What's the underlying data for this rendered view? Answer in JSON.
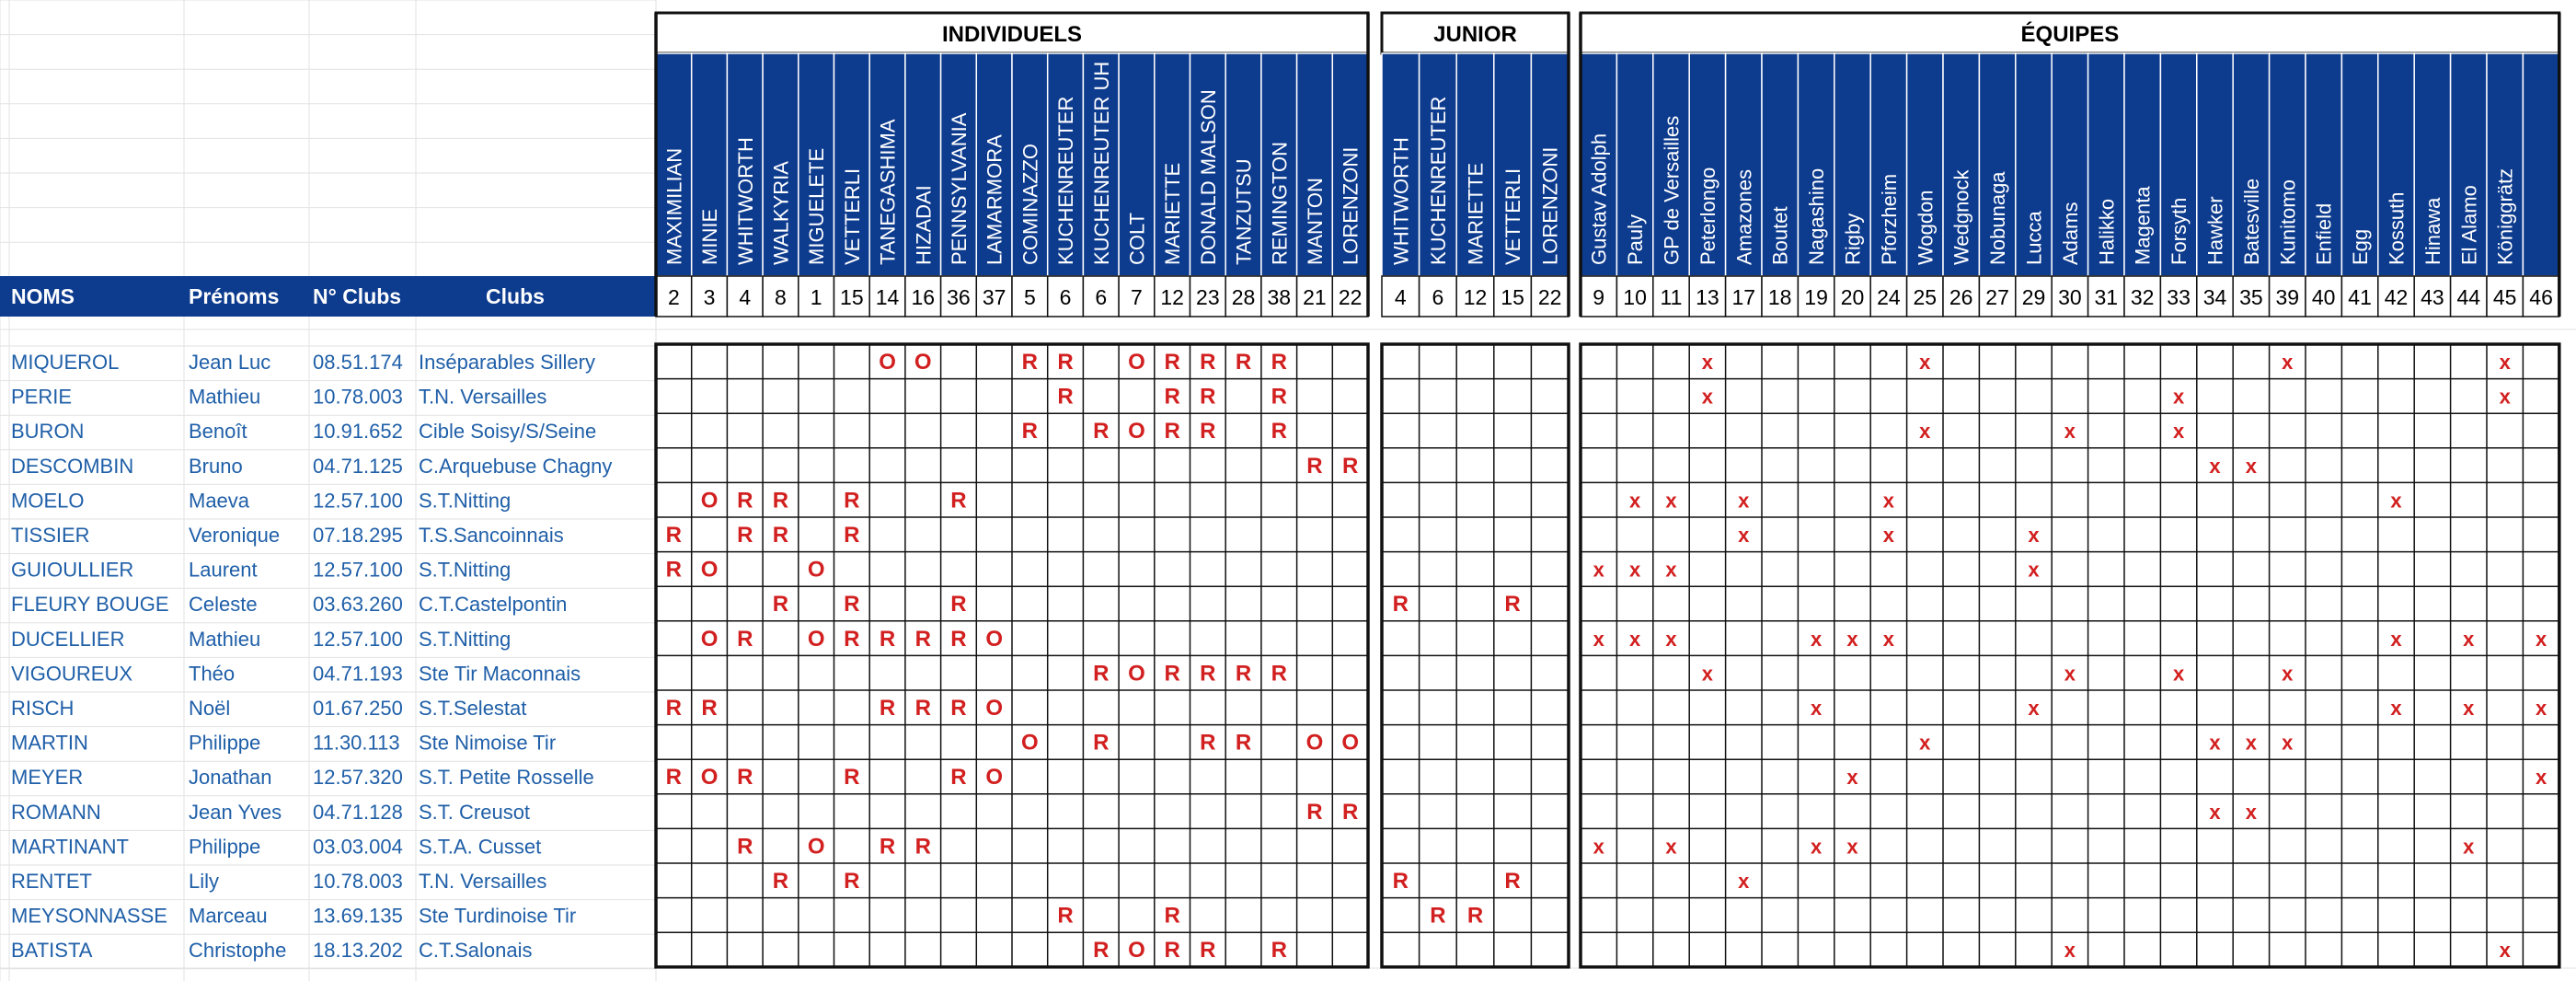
{
  "groups": {
    "individuels": "INDIVIDUELS",
    "junior": "JUNIOR",
    "equipes": "ÉQUIPES"
  },
  "columns": {
    "nom": "NOMS",
    "prenom": "Prénoms",
    "club_no": "N° Clubs",
    "club": "Clubs"
  },
  "individuels": [
    {
      "name": "MAXIMILIAN",
      "num": "2"
    },
    {
      "name": "MINIE",
      "num": "3"
    },
    {
      "name": "WHITWORTH",
      "num": "4"
    },
    {
      "name": "WALKYRIA",
      "num": "8"
    },
    {
      "name": "MIGUELETE",
      "num": "1"
    },
    {
      "name": "VETTERLI",
      "num": "15"
    },
    {
      "name": "TANEGASHIMA",
      "num": "14"
    },
    {
      "name": "HIZADAI",
      "num": "16"
    },
    {
      "name": "PENNSYLVANIA",
      "num": "36"
    },
    {
      "name": "LAMARMORA",
      "num": "37"
    },
    {
      "name": "COMINAZZO",
      "num": "5"
    },
    {
      "name": "KUCHENREUTER",
      "num": "6"
    },
    {
      "name": "KUCHENREUTER UH",
      "num": "6"
    },
    {
      "name": "COLT",
      "num": "7"
    },
    {
      "name": "MARIETTE",
      "num": "12"
    },
    {
      "name": "DONALD MALSON",
      "num": "23"
    },
    {
      "name": "TANZUTSU",
      "num": "28"
    },
    {
      "name": "REMINGTON",
      "num": "38"
    },
    {
      "name": "MANTON",
      "num": "21"
    },
    {
      "name": "LORENZONI",
      "num": "22"
    }
  ],
  "junior": [
    {
      "name": "WHITWORTH",
      "num": "4"
    },
    {
      "name": "KUCHENREUTER",
      "num": "6"
    },
    {
      "name": "MARIETTE",
      "num": "12"
    },
    {
      "name": "VETTERLI",
      "num": "15"
    },
    {
      "name": "LORENZONI",
      "num": "22"
    }
  ],
  "equipes": [
    {
      "name": "Gustav Adolph",
      "num": "9"
    },
    {
      "name": "Pauly",
      "num": "10"
    },
    {
      "name": "GP de Versailles",
      "num": "11"
    },
    {
      "name": "Peterlongo",
      "num": "13"
    },
    {
      "name": "Amazones",
      "num": "17"
    },
    {
      "name": "Boutet",
      "num": "18"
    },
    {
      "name": "Nagashino",
      "num": "19"
    },
    {
      "name": "Rigby",
      "num": "20"
    },
    {
      "name": "Pforzheim",
      "num": "24"
    },
    {
      "name": "Wogdon",
      "num": "25"
    },
    {
      "name": "Wedgnock",
      "num": "26"
    },
    {
      "name": "Nobunaga",
      "num": "27"
    },
    {
      "name": "Lucca",
      "num": "29"
    },
    {
      "name": "Adams",
      "num": "30"
    },
    {
      "name": "Halikko",
      "num": "31"
    },
    {
      "name": "Magenta",
      "num": "32"
    },
    {
      "name": "Forsyth",
      "num": "33"
    },
    {
      "name": "Hawker",
      "num": "34"
    },
    {
      "name": "Batesville",
      "num": "35"
    },
    {
      "name": "Kunitomo",
      "num": "39"
    },
    {
      "name": "Enfield",
      "num": "40"
    },
    {
      "name": "Egg",
      "num": "41"
    },
    {
      "name": "Kossuth",
      "num": "42"
    },
    {
      "name": "Hinawa",
      "num": "43"
    },
    {
      "name": "El Alamo",
      "num": "44"
    },
    {
      "name": "Königgrätz",
      "num": "45"
    },
    {
      "name": "",
      "num": "46"
    }
  ],
  "rows": [
    {
      "nom": "MIQUEROL",
      "prenom": "Jean Luc",
      "club_no": "08.51.174",
      "club": "Inséparables Sillery",
      "ind": {
        "6": "O",
        "7": "O",
        "10": "R",
        "11": "R",
        "13": "O",
        "14": "R",
        "15": "R",
        "16": "R",
        "17": "R"
      },
      "jun": {},
      "eq": {
        "3": "x",
        "9": "x",
        "19": "x",
        "25": "x"
      }
    },
    {
      "nom": "PERIE",
      "prenom": "Mathieu",
      "club_no": "10.78.003",
      "club": "T.N. Versailles",
      "ind": {
        "11": "R",
        "14": "R",
        "15": "R",
        "17": "R"
      },
      "jun": {},
      "eq": {
        "3": "x",
        "16": "x",
        "25": "x"
      }
    },
    {
      "nom": "BURON",
      "prenom": "Benoît",
      "club_no": "10.91.652",
      "club": "Cible Soisy/S/Seine",
      "ind": {
        "10": "R",
        "12": "R",
        "13": "O",
        "14": "R",
        "15": "R",
        "17": "R"
      },
      "jun": {},
      "eq": {
        "9": "x",
        "13": "x",
        "16": "x"
      }
    },
    {
      "nom": "DESCOMBIN",
      "prenom": "Bruno",
      "club_no": "04.71.125",
      "club": "C.Arquebuse Chagny",
      "ind": {
        "18": "R",
        "19": "R"
      },
      "jun": {},
      "eq": {
        "17": "x",
        "18": "x"
      }
    },
    {
      "nom": "MOELO",
      "prenom": "Maeva",
      "club_no": "12.57.100",
      "club": "S.T.Nitting",
      "ind": {
        "1": "O",
        "2": "R",
        "3": "R",
        "5": "R",
        "8": "R"
      },
      "jun": {},
      "eq": {
        "1": "x",
        "2": "x",
        "4": "x",
        "8": "x",
        "22": "x"
      }
    },
    {
      "nom": "TISSIER",
      "prenom": "Veronique",
      "club_no": "07.18.295",
      "club": "T.S.Sancoinnais",
      "ind": {
        "0": "R",
        "2": "R",
        "3": "R",
        "5": "R"
      },
      "jun": {},
      "eq": {
        "4": "x",
        "8": "x",
        "12": "x"
      }
    },
    {
      "nom": "GUIOULLIER",
      "prenom": "Laurent",
      "club_no": "12.57.100",
      "club": "S.T.Nitting",
      "ind": {
        "0": "R",
        "1": "O",
        "4": "O"
      },
      "jun": {},
      "eq": {
        "0": "x",
        "1": "x",
        "2": "x",
        "12": "x"
      }
    },
    {
      "nom": "FLEURY BOUGE",
      "prenom": "Celeste",
      "club_no": "03.63.260",
      "club": "C.T.Castelpontin",
      "ind": {
        "3": "R",
        "5": "R",
        "8": "R"
      },
      "jun": {
        "0": "R",
        "3": "R"
      },
      "eq": {}
    },
    {
      "nom": "DUCELLIER",
      "prenom": "Mathieu",
      "club_no": "12.57.100",
      "club": "S.T.Nitting",
      "ind": {
        "1": "O",
        "2": "R",
        "4": "O",
        "5": "R",
        "6": "R",
        "7": "R",
        "8": "R",
        "9": "O"
      },
      "jun": {},
      "eq": {
        "0": "x",
        "1": "x",
        "2": "x",
        "6": "x",
        "7": "x",
        "8": "x",
        "22": "x",
        "24": "x",
        "26": "x"
      }
    },
    {
      "nom": "VIGOUREUX",
      "prenom": "Théo",
      "club_no": "04.71.193",
      "club": "Ste Tir Maconnais",
      "ind": {
        "12": "R",
        "13": "O",
        "14": "R",
        "15": "R",
        "16": "R",
        "17": "R"
      },
      "jun": {},
      "eq": {
        "3": "x",
        "13": "x",
        "16": "x",
        "19": "x"
      }
    },
    {
      "nom": "RISCH",
      "prenom": "Noël",
      "club_no": "01.67.250",
      "club": "S.T.Selestat",
      "ind": {
        "0": "R",
        "1": "R",
        "6": "R",
        "7": "R",
        "8": "R",
        "9": "O"
      },
      "jun": {},
      "eq": {
        "6": "x",
        "12": "x",
        "22": "x",
        "24": "x",
        "26": "x"
      }
    },
    {
      "nom": "MARTIN",
      "prenom": "Philippe",
      "club_no": "11.30.113",
      "club": "Ste Nimoise Tir",
      "ind": {
        "10": "O",
        "12": "R",
        "15": "R",
        "16": "R",
        "18": "O",
        "19": "O"
      },
      "jun": {},
      "eq": {
        "9": "x",
        "17": "x",
        "18": "x",
        "19": "x"
      }
    },
    {
      "nom": "MEYER",
      "prenom": "Jonathan",
      "club_no": "12.57.320",
      "club": "S.T. Petite Rosselle",
      "ind": {
        "0": "R",
        "1": "O",
        "2": "R",
        "5": "R",
        "8": "R",
        "9": "O"
      },
      "jun": {},
      "eq": {
        "7": "x",
        "26": "x"
      }
    },
    {
      "nom": "ROMANN",
      "prenom": "Jean Yves",
      "club_no": "04.71.128",
      "club": "S.T. Creusot",
      "ind": {
        "18": "R",
        "19": "R"
      },
      "jun": {},
      "eq": {
        "17": "x",
        "18": "x"
      }
    },
    {
      "nom": "MARTINANT",
      "prenom": "Philippe",
      "club_no": "03.03.004",
      "club": "S.T.A. Cusset",
      "ind": {
        "2": "R",
        "4": "O",
        "6": "R",
        "7": "R"
      },
      "jun": {},
      "eq": {
        "0": "x",
        "2": "x",
        "6": "x",
        "7": "x",
        "24": "x"
      }
    },
    {
      "nom": "RENTET",
      "prenom": "Lily",
      "club_no": "10.78.003",
      "club": "T.N. Versailles",
      "ind": {
        "3": "R",
        "5": "R"
      },
      "jun": {
        "0": "R",
        "3": "R"
      },
      "eq": {
        "4": "x"
      }
    },
    {
      "nom": "MEYSONNASSE",
      "prenom": "Marceau",
      "club_no": "13.69.135",
      "club": "Ste Turdinoise Tir",
      "ind": {
        "11": "R",
        "14": "R"
      },
      "jun": {
        "1": "R",
        "2": "R"
      },
      "eq": {}
    },
    {
      "nom": "BATISTA",
      "prenom": "Christophe",
      "club_no": "18.13.202",
      "club": "C.T.Salonais",
      "ind": {
        "12": "R",
        "13": "O",
        "14": "R",
        "15": "R",
        "17": "R"
      },
      "jun": {},
      "eq": {
        "13": "x",
        "25": "x"
      }
    }
  ],
  "colors": {
    "header_fill": "#0d3b8e",
    "header_text": "#ffffff",
    "name_text": "#1f5fa8",
    "mark_text": "#d21f1f",
    "border": "#111111",
    "grid": "#e2e2e2"
  }
}
